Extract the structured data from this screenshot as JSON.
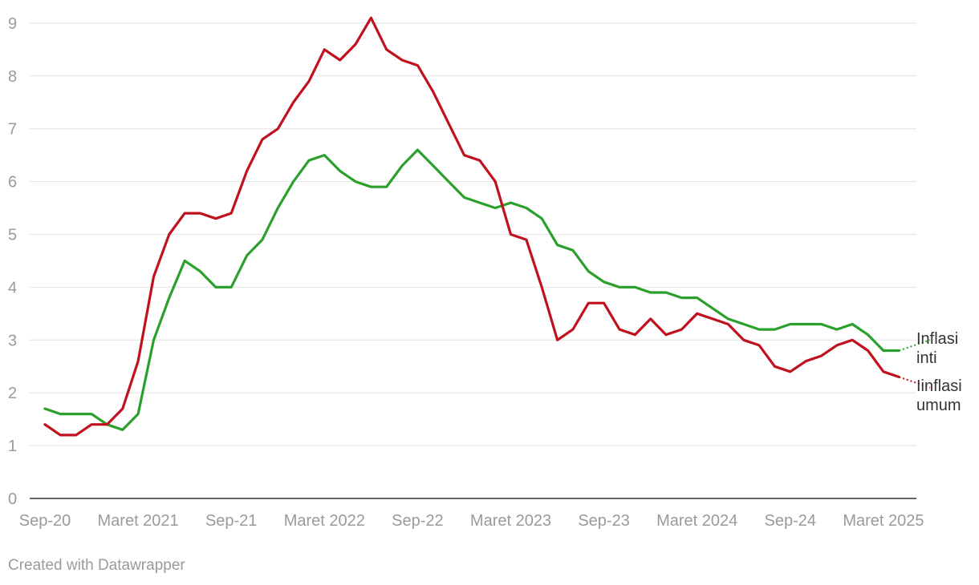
{
  "chart_data": {
    "type": "line",
    "x_tick_labels": [
      "Sep-20",
      "Maret 2021",
      "Sep-21",
      "Maret 2022",
      "Sep-22",
      "Maret 2023",
      "Sep-23",
      "Maret 2024",
      "Sep-24",
      "Maret 2025"
    ],
    "y_ticks": [
      0,
      1,
      2,
      3,
      4,
      5,
      6,
      7,
      8,
      9
    ],
    "ylim": [
      0,
      9
    ],
    "grid": "horizontal",
    "x": [
      "2020-09",
      "2020-10",
      "2020-11",
      "2020-12",
      "2021-01",
      "2021-02",
      "2021-03",
      "2021-04",
      "2021-05",
      "2021-06",
      "2021-07",
      "2021-08",
      "2021-09",
      "2021-10",
      "2021-11",
      "2021-12",
      "2022-01",
      "2022-02",
      "2022-03",
      "2022-04",
      "2022-05",
      "2022-06",
      "2022-07",
      "2022-08",
      "2022-09",
      "2022-10",
      "2022-11",
      "2022-12",
      "2023-01",
      "2023-02",
      "2023-03",
      "2023-04",
      "2023-05",
      "2023-06",
      "2023-07",
      "2023-08",
      "2023-09",
      "2023-10",
      "2023-11",
      "2023-12",
      "2024-01",
      "2024-02",
      "2024-03",
      "2024-04",
      "2024-05",
      "2024-06",
      "2024-07",
      "2024-08",
      "2024-09",
      "2024-10",
      "2024-11",
      "2024-12",
      "2025-01",
      "2025-02",
      "2025-03",
      "2025-04",
      "2025-05",
      "2025-06"
    ],
    "series": [
      {
        "name": "Inflasi inti",
        "color": "#2ca02c",
        "values": [
          1.7,
          1.6,
          1.6,
          1.6,
          1.4,
          1.3,
          1.6,
          3.0,
          3.8,
          4.5,
          4.3,
          4.0,
          4.0,
          4.6,
          4.9,
          5.5,
          6.0,
          6.4,
          6.5,
          6.2,
          6.0,
          5.9,
          5.9,
          6.3,
          6.6,
          6.3,
          6.0,
          5.7,
          5.6,
          5.5,
          5.6,
          5.5,
          5.3,
          4.8,
          4.7,
          4.3,
          4.1,
          4.0,
          4.0,
          3.9,
          3.9,
          3.8,
          3.8,
          3.6,
          3.4,
          3.3,
          3.2,
          3.2,
          3.3,
          3.3,
          3.3,
          3.2,
          3.3,
          3.1,
          2.8,
          2.8,
          null,
          3.0
        ]
      },
      {
        "name": "Iinflasi umum",
        "color": "#c0111f",
        "values": [
          1.4,
          1.2,
          1.2,
          1.4,
          1.4,
          1.7,
          2.6,
          4.2,
          5.0,
          5.4,
          5.4,
          5.3,
          5.4,
          6.2,
          6.8,
          7.0,
          7.5,
          7.9,
          8.5,
          8.3,
          8.6,
          9.1,
          8.5,
          8.3,
          8.2,
          7.7,
          7.1,
          6.5,
          6.4,
          6.0,
          5.0,
          4.9,
          4.0,
          3.0,
          3.2,
          3.7,
          3.7,
          3.2,
          3.1,
          3.4,
          3.1,
          3.2,
          3.5,
          3.4,
          3.3,
          3.0,
          2.9,
          2.5,
          2.4,
          2.6,
          2.7,
          2.9,
          3.0,
          2.8,
          2.4,
          2.3,
          null,
          2.1
        ]
      }
    ],
    "labels": {
      "core_line1": "Inflasi",
      "core_line2": "inti",
      "headline_line1": "Iinflasi",
      "headline_line2": "umum"
    }
  },
  "footer": "Created with Datawrapper"
}
